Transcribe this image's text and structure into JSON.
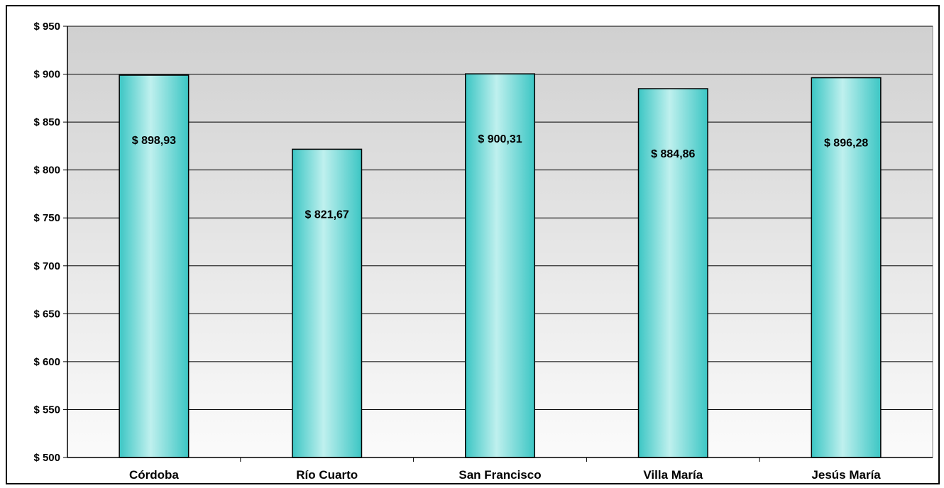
{
  "chart_data": {
    "type": "bar",
    "title": "",
    "xlabel": "",
    "ylabel": "",
    "categories": [
      "Córdoba",
      "Río Cuarto",
      "San Francisco",
      "Villa María",
      "Jesús María"
    ],
    "values": [
      898.93,
      821.67,
      900.31,
      884.86,
      896.28
    ],
    "value_labels": [
      "$ 898,93",
      "$ 821,67",
      "$ 900,31",
      "$ 884,86",
      "$ 896,28"
    ],
    "ylim": [
      500,
      950
    ],
    "ytick_values": [
      500,
      550,
      600,
      650,
      700,
      750,
      800,
      850,
      900,
      950
    ],
    "ytick_labels": [
      "$ 500",
      "$ 550",
      "$ 600",
      "$ 650",
      "$ 700",
      "$ 750",
      "$ 800",
      "$ 850",
      "$ 900",
      "$ 950"
    ],
    "grid": true,
    "legend": "none",
    "colors": {
      "bar_dark": "#3cc6c4",
      "bar_light": "#bff0ee",
      "bar_edge": "#000000",
      "plot_bg_top": "#d2d2d2",
      "plot_bg_bottom": "#fafafa"
    }
  }
}
